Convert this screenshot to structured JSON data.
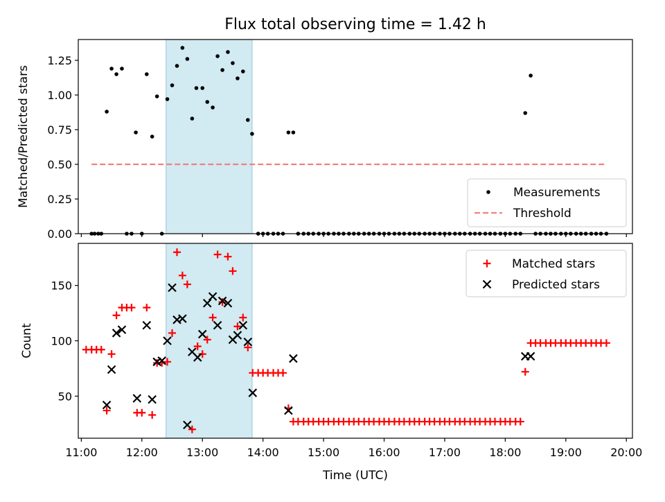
{
  "title": "Flux total observing time = 1.42 h",
  "xlabel": "Time (UTC)",
  "x_tick_labels": [
    "11:00",
    "12:00",
    "13:00",
    "14:00",
    "15:00",
    "16:00",
    "17:00",
    "18:00",
    "19:00",
    "20:00"
  ],
  "x_tick_hours": [
    11,
    12,
    13,
    14,
    15,
    16,
    17,
    18,
    19,
    20
  ],
  "xlim_hours": [
    10.95,
    20.1
  ],
  "colors": {
    "measurement": "#000000",
    "threshold": "#f08080",
    "matched": "#ff0000",
    "predicted": "#000000",
    "span": "#add8e6"
  },
  "chart_data": [
    {
      "type": "scatter",
      "ylabel": "Matched/Predicted stars",
      "ylim": [
        0,
        1.4
      ],
      "y_ticks": [
        0,
        0.25,
        0.5,
        0.75,
        1.0,
        1.25
      ],
      "y_tick_labels": [
        "0.00",
        "0.25",
        "0.50",
        "0.75",
        "1.00",
        "1.25"
      ],
      "legend_position": "lower-right",
      "shaded_span_hours": [
        12.4,
        13.82
      ],
      "series": [
        {
          "name": "Measurements",
          "marker": "dot",
          "x_hours": [
            11.17,
            11.22,
            11.28,
            11.33,
            11.42,
            11.5,
            11.58,
            11.67,
            11.75,
            11.83,
            11.9,
            12.0,
            12.08,
            12.17,
            12.25,
            12.33,
            12.42,
            12.5,
            12.58,
            12.67,
            12.75,
            12.83,
            12.9,
            13.0,
            13.08,
            13.17,
            13.25,
            13.33,
            13.42,
            13.5,
            13.58,
            13.67,
            13.75,
            13.82,
            13.92,
            14.0,
            14.08,
            14.17,
            14.25,
            14.33,
            14.42,
            14.5,
            14.58,
            14.67,
            14.75,
            14.83,
            14.92,
            15.0,
            15.08,
            15.17,
            15.25,
            15.33,
            15.42,
            15.5,
            15.58,
            15.67,
            15.75,
            15.83,
            15.92,
            16.0,
            16.08,
            16.17,
            16.25,
            16.33,
            16.42,
            16.5,
            16.58,
            16.67,
            16.75,
            16.83,
            16.92,
            17.0,
            17.08,
            17.17,
            17.25,
            17.33,
            17.42,
            17.5,
            17.58,
            17.67,
            17.75,
            17.83,
            17.92,
            18.0,
            18.08,
            18.17,
            18.25,
            18.33,
            18.42,
            18.5,
            18.58,
            18.67,
            18.75,
            18.83,
            18.92,
            19.0,
            19.08,
            19.17,
            19.25,
            19.33,
            19.42,
            19.5,
            19.58,
            19.67
          ],
          "y": [
            0,
            0,
            0,
            0,
            0.88,
            1.19,
            1.15,
            1.19,
            0,
            0,
            0.73,
            0,
            1.15,
            0.7,
            0.99,
            0,
            0.97,
            1.07,
            1.21,
            1.34,
            1.26,
            0.83,
            1.05,
            1.05,
            0.95,
            0.91,
            1.28,
            1.18,
            1.31,
            1.23,
            1.12,
            1.17,
            0.82,
            0.72,
            0,
            0,
            0,
            0,
            0,
            0,
            0.73,
            0.73,
            0,
            0,
            0,
            0,
            0,
            0,
            0,
            0,
            0,
            0,
            0,
            0,
            0,
            0,
            0,
            0,
            0,
            0,
            0,
            0,
            0,
            0,
            0,
            0,
            0,
            0,
            0,
            0,
            0,
            0,
            0,
            0,
            0,
            0,
            0,
            0,
            0,
            0,
            0,
            0,
            0,
            0,
            0,
            0,
            0,
            0.87,
            1.14,
            0,
            0,
            0,
            0,
            0,
            0,
            0,
            0,
            0,
            0,
            0,
            0,
            0,
            0,
            0
          ]
        },
        {
          "name": "Threshold",
          "marker": "dashed-line",
          "x_hours": [
            11.17,
            19.67
          ],
          "y": [
            0.5,
            0.5
          ]
        }
      ]
    },
    {
      "type": "scatter",
      "ylabel": "Count",
      "ylim": [
        12,
        188
      ],
      "y_ticks": [
        50,
        100,
        150
      ],
      "y_tick_labels": [
        "50",
        "100",
        "150"
      ],
      "legend_position": "upper-right",
      "shaded_span_hours": [
        12.4,
        13.82
      ],
      "series": [
        {
          "name": "Matched stars",
          "marker": "plus",
          "x_hours": [
            11.08,
            11.17,
            11.25,
            11.33,
            11.42,
            11.5,
            11.58,
            11.67,
            11.75,
            11.83,
            11.92,
            12.0,
            12.08,
            12.17,
            12.25,
            12.33,
            12.42,
            12.5,
            12.58,
            12.67,
            12.75,
            12.83,
            12.92,
            13.0,
            13.08,
            13.17,
            13.25,
            13.33,
            13.42,
            13.5,
            13.58,
            13.67,
            13.75,
            13.83,
            13.92,
            14.0,
            14.08,
            14.17,
            14.25,
            14.33,
            14.42,
            14.5,
            14.58,
            14.67,
            14.75,
            14.83,
            14.92,
            15.0,
            15.08,
            15.17,
            15.25,
            15.33,
            15.42,
            15.5,
            15.58,
            15.67,
            15.75,
            15.83,
            15.92,
            16.0,
            16.08,
            16.17,
            16.25,
            16.33,
            16.42,
            16.5,
            16.58,
            16.67,
            16.75,
            16.83,
            16.92,
            17.0,
            17.08,
            17.17,
            17.25,
            17.33,
            17.42,
            17.5,
            17.58,
            17.67,
            17.75,
            17.83,
            17.92,
            18.0,
            18.08,
            18.17,
            18.25,
            18.33,
            18.42,
            18.5,
            18.58,
            18.67,
            18.75,
            18.83,
            18.92,
            19.0,
            19.08,
            19.17,
            19.25,
            19.33,
            19.42,
            19.5,
            19.58,
            19.67
          ],
          "y": [
            92,
            92,
            92,
            92,
            37,
            88,
            123,
            130,
            130,
            130,
            35,
            35,
            130,
            33,
            80,
            80,
            81,
            107,
            180,
            159,
            151,
            20,
            95,
            88,
            101,
            121,
            178,
            135,
            176,
            163,
            113,
            121,
            94,
            71,
            71,
            71,
            71,
            71,
            71,
            71,
            39,
            27,
            27,
            27,
            27,
            27,
            27,
            27,
            27,
            27,
            27,
            27,
            27,
            27,
            27,
            27,
            27,
            27,
            27,
            27,
            27,
            27,
            27,
            27,
            27,
            27,
            27,
            27,
            27,
            27,
            27,
            27,
            27,
            27,
            27,
            27,
            27,
            27,
            27,
            27,
            27,
            27,
            27,
            27,
            27,
            27,
            27,
            72,
            98,
            98,
            98,
            98,
            98,
            98,
            98,
            98,
            98,
            98,
            98,
            98,
            98,
            98,
            98,
            98
          ]
        },
        {
          "name": "Predicted stars",
          "marker": "x",
          "x_hours": [
            11.42,
            11.5,
            11.58,
            11.67,
            11.92,
            12.08,
            12.17,
            12.25,
            12.33,
            12.42,
            12.5,
            12.58,
            12.67,
            12.75,
            12.83,
            12.92,
            13.0,
            13.08,
            13.17,
            13.25,
            13.33,
            13.42,
            13.5,
            13.58,
            13.67,
            13.75,
            13.83,
            14.42,
            14.5,
            18.33,
            18.42
          ],
          "y": [
            42,
            74,
            107,
            110,
            48,
            114,
            47,
            81,
            82,
            100,
            148,
            119,
            120,
            24,
            90,
            85,
            106,
            134,
            140,
            114,
            136,
            134,
            101,
            105,
            114,
            99,
            53,
            37,
            84,
            86,
            86
          ]
        }
      ]
    }
  ]
}
